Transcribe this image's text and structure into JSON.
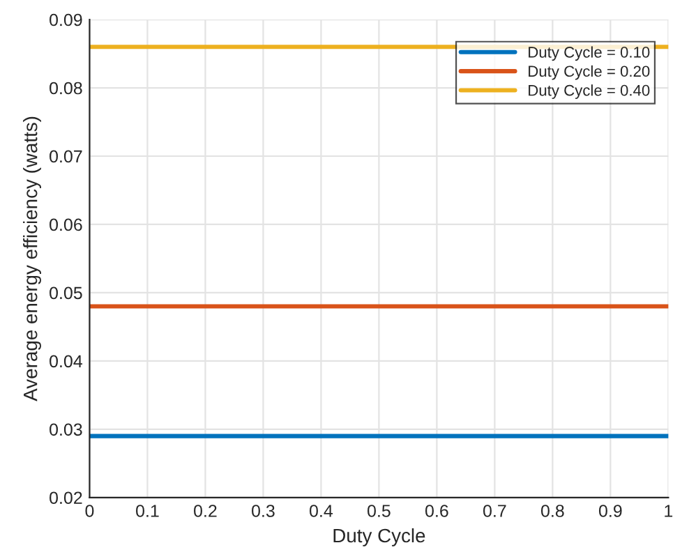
{
  "chart_data": {
    "type": "line",
    "xlabel": "Duty Cycle",
    "ylabel": "Average energy efficiency (watts)",
    "x": [
      0,
      1
    ],
    "series": [
      {
        "name": "Duty Cycle = 0.10",
        "color": "#0072bd",
        "values": [
          0.029,
          0.029
        ]
      },
      {
        "name": "Duty Cycle = 0.20",
        "color": "#d95319",
        "values": [
          0.048,
          0.048
        ]
      },
      {
        "name": "Duty Cycle = 0.40",
        "color": "#edb120",
        "values": [
          0.086,
          0.086
        ]
      }
    ],
    "xlim": [
      0,
      1
    ],
    "xticks": [
      0,
      0.1,
      0.2,
      0.3,
      0.4,
      0.5,
      0.6,
      0.7,
      0.8,
      0.9,
      1
    ],
    "ylim": [
      0.02,
      0.09
    ],
    "yticks": [
      0.02,
      0.03,
      0.04,
      0.05,
      0.06,
      0.07,
      0.08,
      0.09
    ],
    "grid": true,
    "legend": "top right",
    "line_style": "solid",
    "marker": "none"
  }
}
